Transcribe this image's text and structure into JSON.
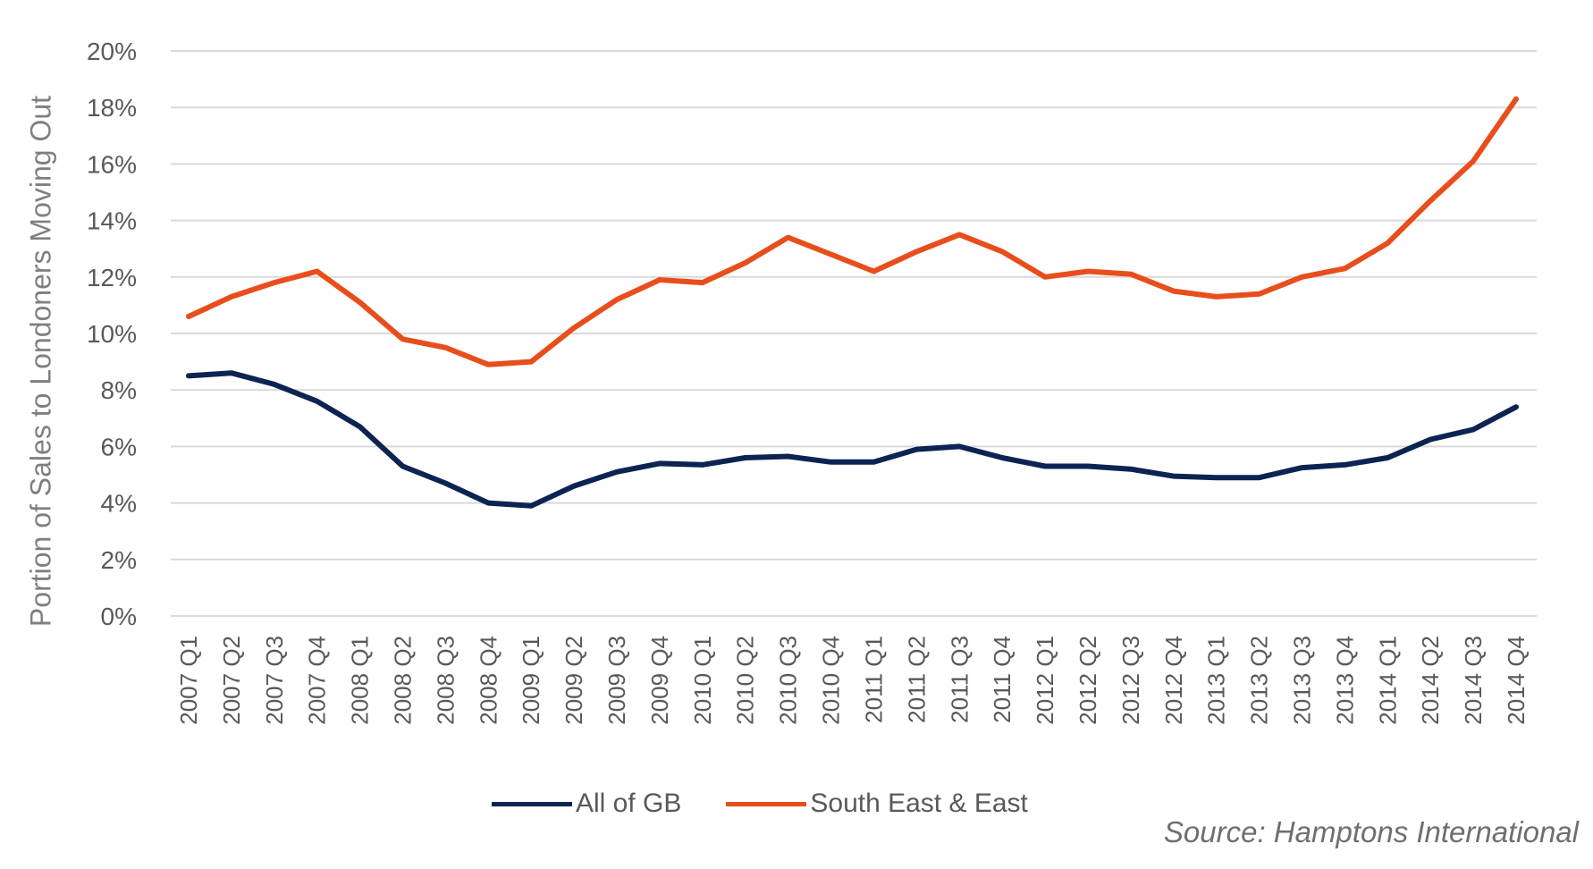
{
  "chart_data": {
    "type": "line",
    "title": "",
    "xlabel": "",
    "ylabel": "Portion of Sales to Londoners Moving Out",
    "ylim": [
      0,
      20
    ],
    "yticks": [
      "0%",
      "2%",
      "4%",
      "6%",
      "8%",
      "10%",
      "12%",
      "14%",
      "16%",
      "18%",
      "20%"
    ],
    "grid": true,
    "legend_position": "bottom",
    "categories": [
      "2007 Q1",
      "2007 Q2",
      "2007 Q3",
      "2007 Q4",
      "2008 Q1",
      "2008 Q2",
      "2008 Q3",
      "2008 Q4",
      "2009 Q1",
      "2009 Q2",
      "2009 Q3",
      "2009 Q4",
      "2010 Q1",
      "2010 Q2",
      "2010 Q3",
      "2010 Q4",
      "2011 Q1",
      "2011 Q2",
      "2011 Q3",
      "2011 Q4",
      "2012 Q1",
      "2012 Q2",
      "2012 Q3",
      "2012 Q4",
      "2013 Q1",
      "2013 Q2",
      "2013 Q3",
      "2013 Q4",
      "2014 Q1",
      "2014 Q2",
      "2014 Q3",
      "2014 Q4"
    ],
    "series": [
      {
        "name": "All of GB",
        "color": "#0b2452",
        "values": [
          8.5,
          8.6,
          8.2,
          7.6,
          6.7,
          5.3,
          4.7,
          4.0,
          3.9,
          4.6,
          5.1,
          5.4,
          5.35,
          5.6,
          5.65,
          5.45,
          5.45,
          5.9,
          6.0,
          5.6,
          5.3,
          5.3,
          5.2,
          4.95,
          4.9,
          4.9,
          5.25,
          5.35,
          5.6,
          6.25,
          6.6,
          7.4
        ]
      },
      {
        "name": "South East & East",
        "color": "#e84e1b",
        "values": [
          10.6,
          11.3,
          11.8,
          12.2,
          11.1,
          9.8,
          9.5,
          8.9,
          9.0,
          10.2,
          11.2,
          11.9,
          11.8,
          12.5,
          13.4,
          12.8,
          12.2,
          12.9,
          13.5,
          12.9,
          12.0,
          12.2,
          12.1,
          11.5,
          11.3,
          11.4,
          12.0,
          12.3,
          13.2,
          14.7,
          16.1,
          18.3
        ]
      }
    ],
    "source": "Source: Hamptons International"
  }
}
